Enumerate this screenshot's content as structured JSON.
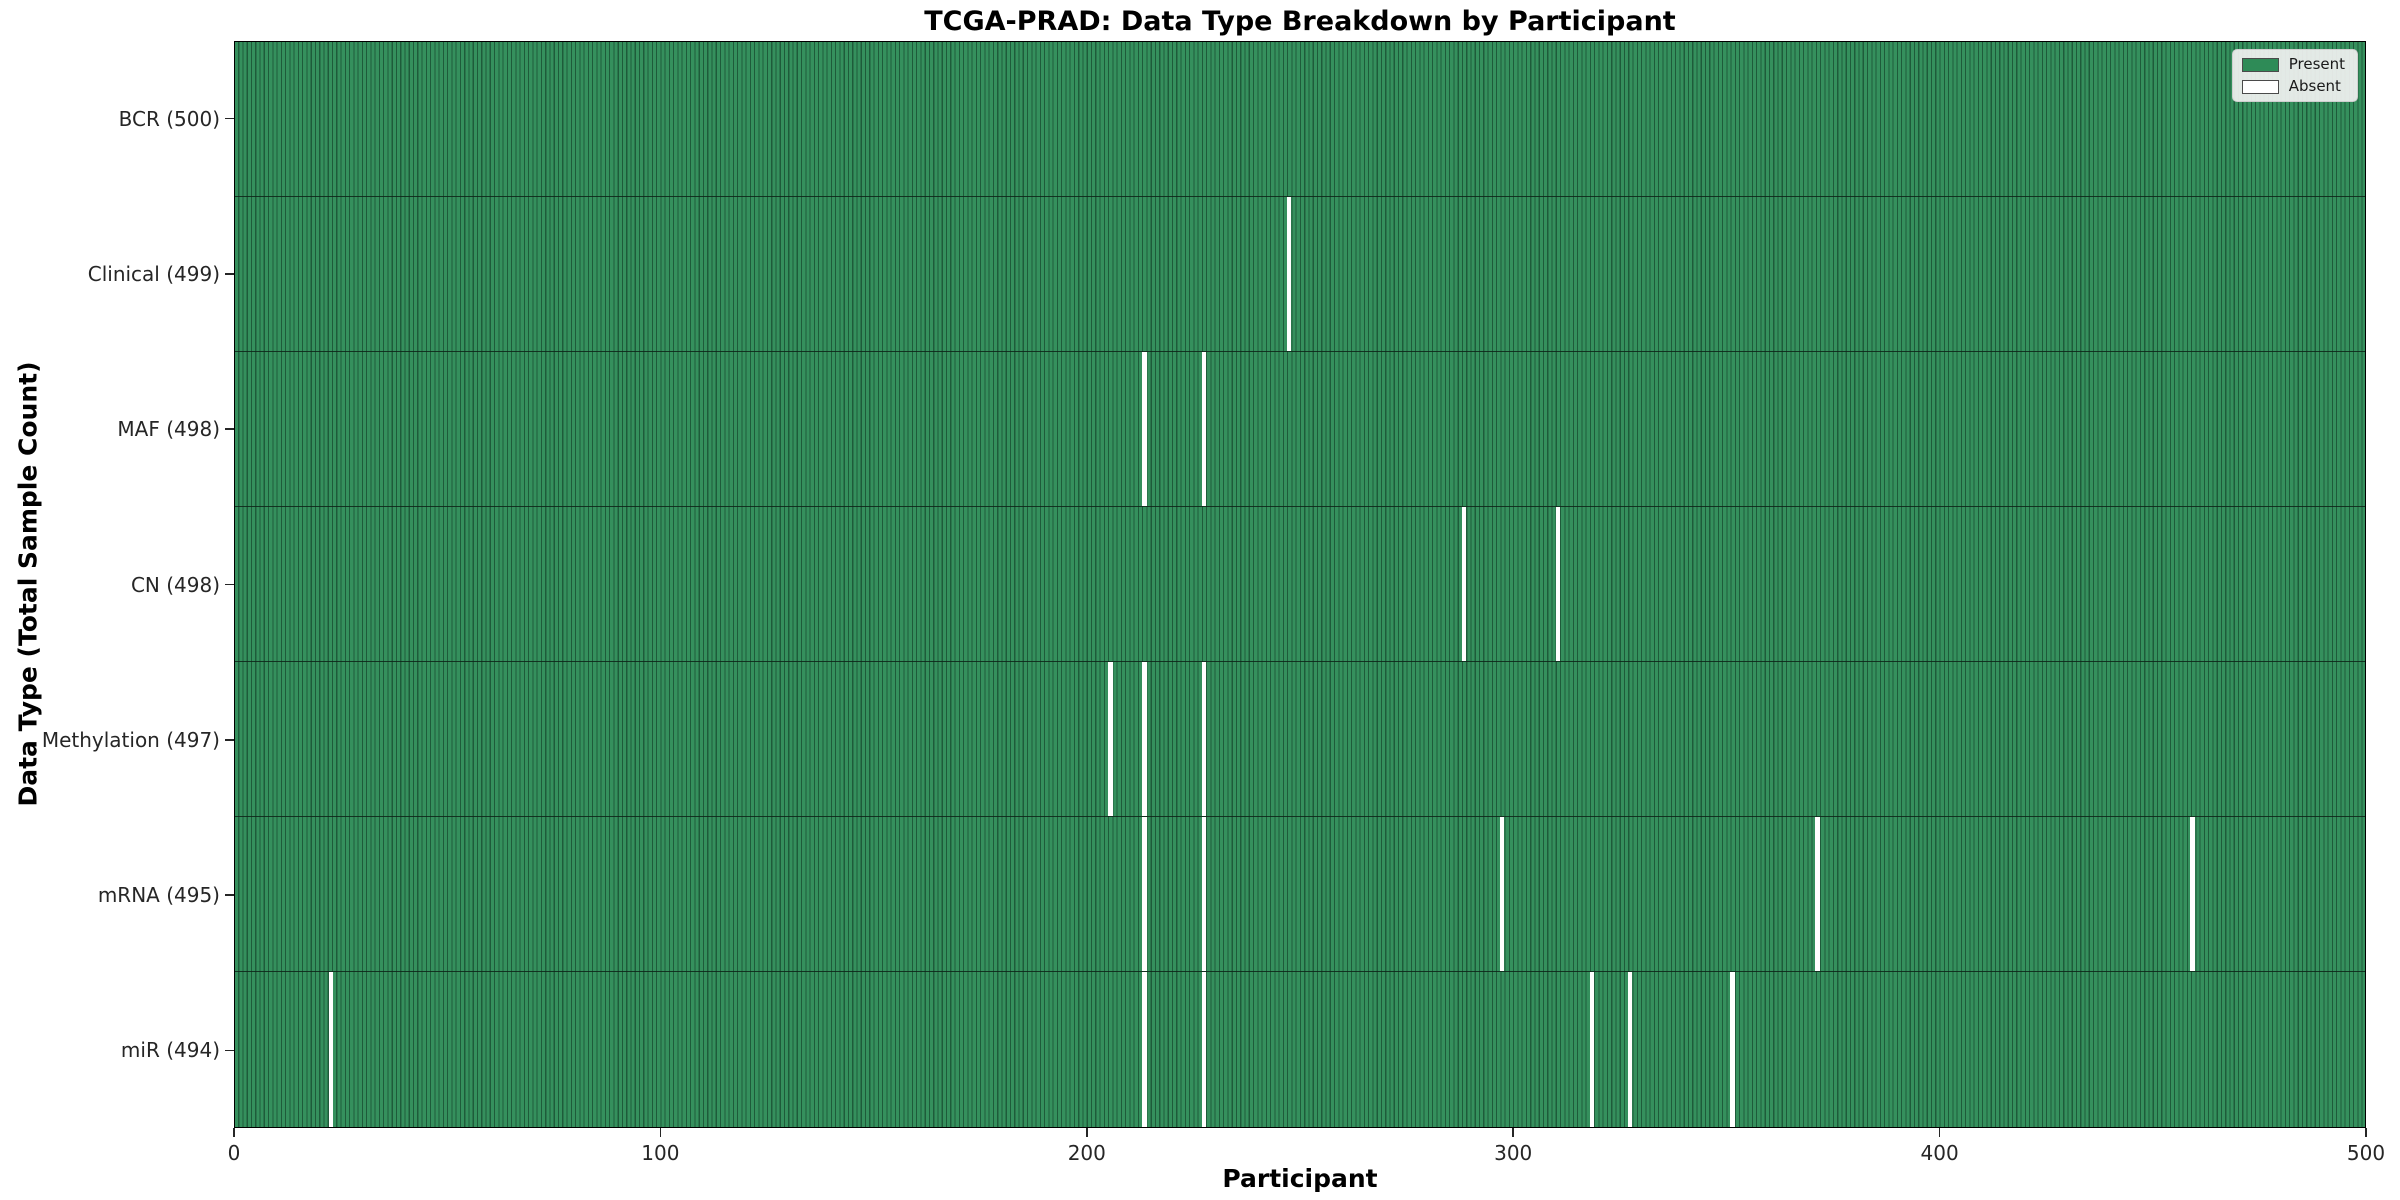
{
  "title": "TCGA-PRAD: Data Type Breakdown by Participant",
  "colors": {
    "present_fill": "#35905d",
    "present_edge": "#1e5b3a",
    "legend_present": "#2e8b57",
    "legend_absent": "#ffffff",
    "absent": "#ffffff",
    "row_divider": "#0d2418"
  },
  "chart_data": {
    "type": "heatmap",
    "title": "TCGA-PRAD: Data Type Breakdown by Participant",
    "xlabel": "Participant",
    "ylabel": "Data Type (Total Sample Count)",
    "x_range": [
      0,
      500
    ],
    "n_participants": 500,
    "x_ticks": [
      0,
      100,
      200,
      300,
      400,
      500
    ],
    "grid": false,
    "legend_position": "upper right",
    "legend_entries": [
      "Present",
      "Absent"
    ],
    "rows": [
      {
        "name": "BCR",
        "label": "BCR (500)",
        "total": 500,
        "absent_participants": []
      },
      {
        "name": "Clinical",
        "label": "Clinical (499)",
        "total": 499,
        "absent_participants": [
          247
        ]
      },
      {
        "name": "MAF",
        "label": "MAF (498)",
        "total": 498,
        "absent_participants": [
          213,
          227
        ]
      },
      {
        "name": "CN",
        "label": "CN (498)",
        "total": 498,
        "absent_participants": [
          288,
          310
        ]
      },
      {
        "name": "Methylation",
        "label": "Methylation (497)",
        "total": 497,
        "absent_participants": [
          205,
          213,
          227
        ]
      },
      {
        "name": "mRNA",
        "label": "mRNA (495)",
        "total": 495,
        "absent_participants": [
          213,
          227,
          297,
          371,
          459
        ]
      },
      {
        "name": "miR",
        "label": "miR (494)",
        "total": 494,
        "absent_participants": [
          22,
          213,
          227,
          318,
          327,
          351
        ]
      }
    ]
  }
}
